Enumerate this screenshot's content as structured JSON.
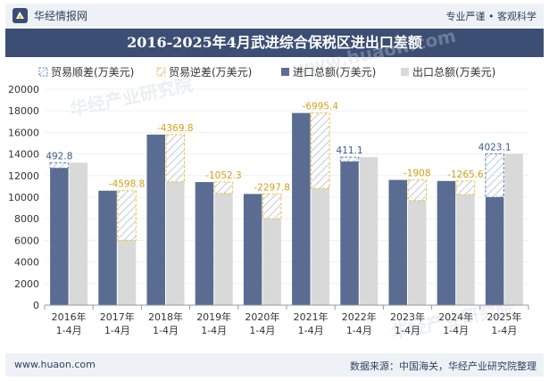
{
  "header": {
    "brand": "华经情报网",
    "tagline": "专业严谨 • 客观科学",
    "title": "2016-2025年4月武进综合保税区进出口差额"
  },
  "footer": {
    "website": "www.huaon.com",
    "source": "数据来源：中国海关，华经产业研究院整理"
  },
  "watermarks": [
    "华经产业研究院",
    "www.huaon.com"
  ],
  "colors": {
    "import": "#5b6c93",
    "export": "#d9d9d9",
    "surplus": "#5b7fb0",
    "deficit": "#f2c230",
    "header_bg": "#3c4e74"
  },
  "chart_data": {
    "type": "bar",
    "title": "2016-2025年4月武进综合保税区进出口差额",
    "categories": [
      "2016年\n1-4月",
      "2017年\n1-4月",
      "2018年\n1-4月",
      "2019年\n1-4月",
      "2020年\n1-4月",
      "2021年\n1-4月",
      "2022年\n1-4月",
      "2023年\n1-4月",
      "2024年\n1-4月",
      "2025年\n1-4月"
    ],
    "series": [
      {
        "name": "进口总额(万美元)",
        "values": [
          12700,
          10600,
          15800,
          11400,
          10300,
          17800,
          13300,
          11600,
          11500,
          10000
        ]
      },
      {
        "name": "出口总额(万美元)",
        "values": [
          13192.8,
          6001.2,
          11430.2,
          10347.7,
          8002.2,
          10804.6,
          13711.1,
          9692,
          10234.4,
          14023.1
        ]
      }
    ],
    "balance": [
      492.8,
      -4598.8,
      -4369.8,
      -1052.3,
      -2297.8,
      -6995.4,
      411.1,
      -1908,
      -1265.6,
      4023.1
    ],
    "balance_labels": [
      "492.8",
      "-4598.8",
      "-4369.8",
      "-1052.3",
      "-2297.8",
      "-6995.4",
      "411.1",
      "-1908",
      "-1265.6",
      "4023.1"
    ],
    "legend": [
      "贸易顺差(万美元)",
      "贸易逆差(万美元)",
      "进口总额(万美元)",
      "出口总额(万美元)"
    ],
    "yticks": [
      "0",
      "2000",
      "4000",
      "6000",
      "8000",
      "10000",
      "12000",
      "14000",
      "16000",
      "18000",
      "20000"
    ],
    "ylim": [
      0,
      20000
    ],
    "xlabel": "",
    "ylabel": ""
  }
}
